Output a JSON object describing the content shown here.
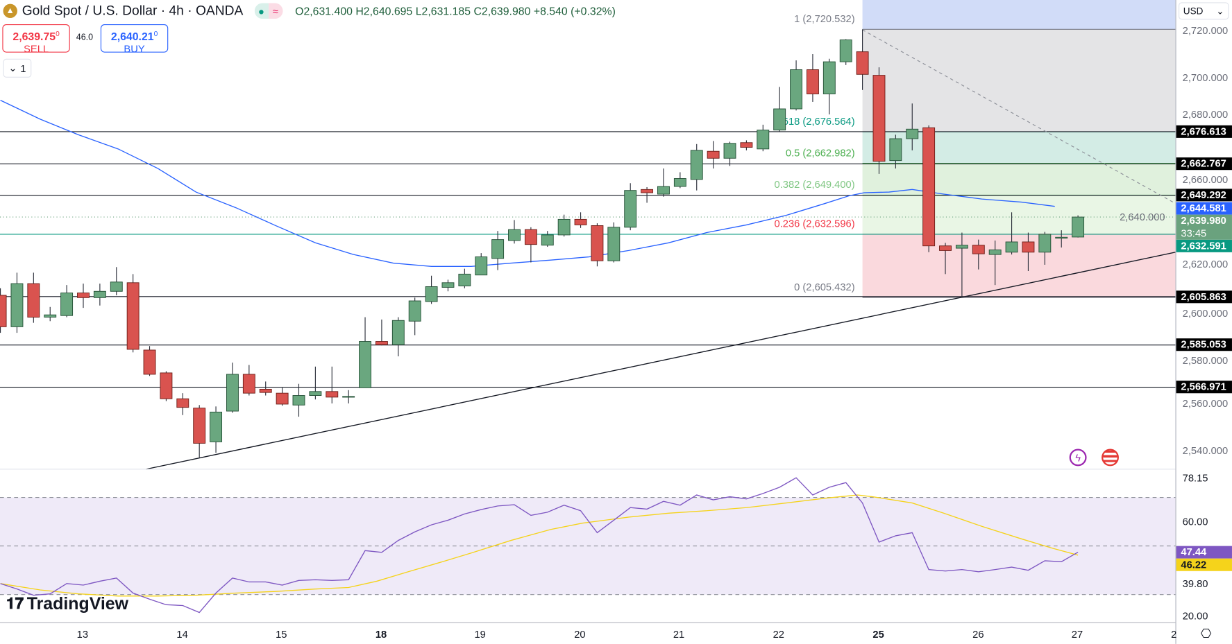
{
  "header": {
    "title": "Gold Spot / U.S. Dollar · 4h · OANDA",
    "open": "O2,631.400",
    "high": "H2,640.695",
    "low": "L2,631.185",
    "close": "C2,639.980",
    "change": "+8.540 (+0.32%)",
    "sell_price": "2,639.75",
    "sell_sup": "0",
    "sell_label": "SELL",
    "buy_price": "2,640.21",
    "buy_sup": "0",
    "buy_label": "BUY",
    "spread": "46.0",
    "collapse_label": "1",
    "logo_icon": "gold-bars-icon"
  },
  "axis": {
    "currency": "USD",
    "price_ticks": [
      "2,720.000",
      "2,700.000",
      "2,680.000",
      "2,660.000",
      "2,640.000",
      "2,620.000",
      "2,600.000",
      "2,580.000",
      "2,560.000",
      "2,540.000"
    ],
    "rsi_ticks": [
      "78.15",
      "60.00",
      "39.80",
      "20.00"
    ]
  },
  "time_axis": [
    "13",
    "14",
    "15",
    "18",
    "19",
    "20",
    "21",
    "22",
    "25",
    "26",
    "27",
    "2"
  ],
  "levels": [
    {
      "price": 2676.613,
      "label": "2,676.613",
      "color": "#000000"
    },
    {
      "price": 2662.767,
      "label": "2,662.767",
      "color": "#000000"
    },
    {
      "price": 2649.292,
      "label": "2,649.292",
      "color": "#000000"
    },
    {
      "price": 2605.863,
      "label": "2,605.863",
      "color": "#000000"
    },
    {
      "price": 2585.053,
      "label": "2,585.053",
      "color": "#000000"
    },
    {
      "price": 2566.971,
      "label": "2,566.971",
      "color": "#000000"
    },
    {
      "price": 2632.591,
      "label": "2,632.591",
      "color": "#089981"
    }
  ],
  "ma_badge": {
    "price": 2644.581,
    "label": "2,644.581",
    "color": "#2962ff"
  },
  "last_badge": {
    "price": 2639.98,
    "label": "2,639.980",
    "countdown": "33:45",
    "color": "#6aa27e"
  },
  "fib": {
    "labels": [
      {
        "ratio": 1,
        "price": 2720.532,
        "text": "1 (2,720.532)",
        "color": "#787b86"
      },
      {
        "ratio": 0.618,
        "price": 2676.564,
        "text": "0.618 (2,676.564)",
        "color": "#089981"
      },
      {
        "ratio": 0.5,
        "price": 2662.982,
        "text": "0.5 (2,662.982)",
        "color": "#4caf50"
      },
      {
        "ratio": 0.382,
        "price": 2649.4,
        "text": "0.382 (2,649.400)",
        "color": "#81c784"
      },
      {
        "ratio": 0.236,
        "price": 2632.596,
        "text": "0.236 (2,632.596)",
        "color": "#f23645"
      },
      {
        "ratio": 0,
        "price": 2605.432,
        "text": "0 (2,605.432)",
        "color": "#787b86"
      }
    ],
    "band_colors": [
      "#d1dcf8",
      "#e4e4e6",
      "#d3ece5",
      "#e0f1dd",
      "#e9f6e5",
      "#fad9dd"
    ]
  },
  "chart_data": {
    "type": "candlestick",
    "interval": "4h",
    "ylim": [
      2532,
      2726
    ],
    "candles": [
      [
        2606.4,
        2609.4,
        2590.3,
        2592.9
      ],
      [
        2592.9,
        2616.1,
        2590.3,
        2611.4
      ],
      [
        2611.4,
        2616.1,
        2594.6,
        2597.0
      ],
      [
        2597.0,
        2601.4,
        2595.3,
        2598.0
      ],
      [
        2597.7,
        2610.8,
        2597.0,
        2607.4
      ],
      [
        2607.4,
        2611.4,
        2601.0,
        2605.4
      ],
      [
        2605.4,
        2611.4,
        2602.0,
        2608.1
      ],
      [
        2608.1,
        2618.5,
        2606.4,
        2612.1
      ],
      [
        2611.8,
        2615.5,
        2581.9,
        2583.2
      ],
      [
        2582.9,
        2584.6,
        2571.8,
        2572.5
      ],
      [
        2573.1,
        2573.8,
        2561.0,
        2562.0
      ],
      [
        2562.0,
        2564.4,
        2555.0,
        2558.3
      ],
      [
        2558.0,
        2559.3,
        2536.5,
        2542.9
      ],
      [
        2543.5,
        2558.7,
        2538.8,
        2556.3
      ],
      [
        2556.7,
        2577.5,
        2556.0,
        2572.5
      ],
      [
        2572.5,
        2576.5,
        2563.4,
        2564.4
      ],
      [
        2566.1,
        2569.4,
        2563.4,
        2564.7
      ],
      [
        2564.4,
        2566.7,
        2559.0,
        2559.7
      ],
      [
        2559.3,
        2568.4,
        2554.3,
        2563.4
      ],
      [
        2563.4,
        2575.8,
        2561.7,
        2565.1
      ],
      [
        2565.1,
        2575.8,
        2560.0,
        2562.7
      ],
      [
        2562.7,
        2565.7,
        2560.0,
        2563.0
      ],
      [
        2566.7,
        2597.0,
        2566.7,
        2586.6
      ],
      [
        2586.6,
        2596.0,
        2584.9,
        2585.2
      ],
      [
        2585.2,
        2597.0,
        2580.2,
        2595.6
      ],
      [
        2595.3,
        2605.4,
        2589.3,
        2604.0
      ],
      [
        2603.7,
        2614.8,
        2602.7,
        2610.1
      ],
      [
        2609.8,
        2613.1,
        2608.1,
        2611.8
      ],
      [
        2610.4,
        2617.8,
        2609.4,
        2615.5
      ],
      [
        2615.1,
        2624.5,
        2615.1,
        2622.9
      ],
      [
        2622.2,
        2634.0,
        2617.2,
        2630.3
      ],
      [
        2629.9,
        2638.7,
        2628.6,
        2634.6
      ],
      [
        2634.6,
        2635.6,
        2620.5,
        2628.2
      ],
      [
        2627.9,
        2634.0,
        2627.2,
        2632.3
      ],
      [
        2632.3,
        2641.0,
        2631.6,
        2639.0
      ],
      [
        2639.0,
        2642.0,
        2635.3,
        2636.6
      ],
      [
        2636.3,
        2637.3,
        2618.8,
        2621.2
      ],
      [
        2621.2,
        2637.7,
        2620.5,
        2635.6
      ],
      [
        2635.6,
        2654.5,
        2634.3,
        2651.4
      ],
      [
        2651.8,
        2652.8,
        2646.1,
        2650.4
      ],
      [
        2649.8,
        2660.8,
        2648.7,
        2653.1
      ],
      [
        2653.1,
        2659.2,
        2652.4,
        2656.5
      ],
      [
        2656.1,
        2671.3,
        2651.4,
        2668.6
      ],
      [
        2668.2,
        2672.6,
        2660.8,
        2665.2
      ],
      [
        2665.2,
        2672.3,
        2661.9,
        2671.6
      ],
      [
        2671.9,
        2672.9,
        2668.6,
        2669.9
      ],
      [
        2669.2,
        2679.6,
        2668.2,
        2677.3
      ],
      [
        2677.3,
        2695.8,
        2676.6,
        2686.4
      ],
      [
        2686.4,
        2707.2,
        2685.7,
        2703.2
      ],
      [
        2703.2,
        2709.9,
        2689.4,
        2692.8
      ],
      [
        2692.8,
        2707.9,
        2684.0,
        2706.6
      ],
      [
        2706.6,
        2716.3,
        2705.2,
        2716.0
      ],
      [
        2710.9,
        2720.5,
        2694.5,
        2701.2
      ],
      [
        2700.8,
        2704.2,
        2658.5,
        2663.9
      ],
      [
        2664.2,
        2675.3,
        2660.8,
        2673.6
      ],
      [
        2673.6,
        2688.7,
        2668.6,
        2677.7
      ],
      [
        2678.3,
        2679.3,
        2624.9,
        2627.6
      ],
      [
        2627.6,
        2628.9,
        2615.5,
        2625.6
      ],
      [
        2626.6,
        2633.3,
        2605.4,
        2627.9
      ],
      [
        2627.9,
        2630.3,
        2617.5,
        2624.2
      ],
      [
        2623.9,
        2629.9,
        2610.8,
        2625.9
      ],
      [
        2624.9,
        2642.0,
        2623.9,
        2629.3
      ],
      [
        2629.3,
        2633.3,
        2616.8,
        2624.9
      ],
      [
        2624.9,
        2633.6,
        2619.5,
        2632.6
      ],
      [
        2630.9,
        2634.3,
        2626.9,
        2631.3
      ],
      [
        2631.4,
        2640.695,
        2631.185,
        2639.98
      ]
    ],
    "ma": [
      [
        0,
        2690.1
      ],
      [
        2.4,
        2682.0
      ],
      [
        4.7,
        2675.3
      ],
      [
        7.1,
        2669.2
      ],
      [
        9.5,
        2660.8
      ],
      [
        11.8,
        2650.7
      ],
      [
        14.2,
        2644.0
      ],
      [
        16.6,
        2636.3
      ],
      [
        19,
        2628.9
      ],
      [
        21.3,
        2623.9
      ],
      [
        23.7,
        2620.2
      ],
      [
        26,
        2618.8
      ],
      [
        28.4,
        2618.8
      ],
      [
        30.8,
        2620.2
      ],
      [
        33.2,
        2621.5
      ],
      [
        35.5,
        2622.9
      ],
      [
        37.9,
        2625.6
      ],
      [
        40.3,
        2628.9
      ],
      [
        42.6,
        2633.3
      ],
      [
        45,
        2636.6
      ],
      [
        47.4,
        2640.7
      ],
      [
        49.7,
        2645.7
      ],
      [
        51.2,
        2649.1
      ],
      [
        52.1,
        2650.4
      ],
      [
        53.6,
        2650.7
      ],
      [
        55,
        2651.8
      ],
      [
        56.9,
        2649.8
      ],
      [
        59.2,
        2647.7
      ],
      [
        61.6,
        2646.4
      ],
      [
        63.6,
        2644.581
      ]
    ],
    "trendline": [
      [
        8.8,
        2531.8
      ],
      [
        70.9,
        2624.9
      ]
    ],
    "dashed_line": [
      [
        52,
        2720.3
      ],
      [
        70.9,
        2645.7
      ]
    ],
    "rsi": {
      "ylim": [
        15,
        82
      ],
      "bands": [
        30,
        50,
        70
      ],
      "last": "47.44",
      "signal_last": "46.22",
      "line_color": "#7e57c2",
      "signal_color": "#f5d31b",
      "values": [
        34.5,
        32.3,
        29.7,
        30.3,
        34.5,
        33.9,
        35.5,
        36.8,
        30.6,
        28.1,
        25.8,
        25.5,
        22.6,
        30.6,
        36.8,
        35.2,
        35.2,
        33.9,
        35.8,
        36.1,
        35.8,
        36.1,
        48.1,
        47.4,
        52.3,
        55.8,
        58.7,
        60.6,
        63.2,
        65.0,
        66.5,
        67.0,
        62.6,
        63.9,
        66.8,
        64.5,
        55.5,
        60.6,
        65.8,
        65.2,
        68.4,
        66.8,
        71.0,
        69.0,
        70.3,
        69.4,
        71.6,
        74.2,
        78.1,
        71.0,
        74.2,
        76.1,
        67.7,
        51.6,
        54.2,
        55.5,
        40.3,
        39.7,
        40.3,
        39.4,
        40.3,
        41.3,
        40.0,
        43.9,
        43.5,
        47.44
      ],
      "signal": [
        [
          0,
          34.5
        ],
        [
          2.4,
          31.9
        ],
        [
          4.7,
          30.3
        ],
        [
          7.1,
          29.4
        ],
        [
          9.5,
          29.4
        ],
        [
          11.8,
          29.7
        ],
        [
          14.2,
          30.6
        ],
        [
          16.6,
          31.3
        ],
        [
          19,
          32.3
        ],
        [
          21,
          32.9
        ],
        [
          22.7,
          35.5
        ],
        [
          24.6,
          39.4
        ],
        [
          26.5,
          43.2
        ],
        [
          28.4,
          47.1
        ],
        [
          30.8,
          52.3
        ],
        [
          33.2,
          56.8
        ],
        [
          35.1,
          59.4
        ],
        [
          37.9,
          61.9
        ],
        [
          40.3,
          63.5
        ],
        [
          42.6,
          64.5
        ],
        [
          45,
          65.8
        ],
        [
          47.4,
          67.7
        ],
        [
          49.8,
          69.7
        ],
        [
          51.7,
          71.0
        ],
        [
          52.6,
          70.3
        ],
        [
          55,
          67.7
        ],
        [
          56.9,
          63.5
        ],
        [
          59.2,
          58.1
        ],
        [
          61.6,
          52.9
        ],
        [
          63.5,
          49.0
        ],
        [
          65,
          46.22
        ]
      ]
    }
  },
  "colors": {
    "up": "#6aa77f",
    "down": "#d9534f",
    "ma": "#2962ff"
  },
  "branding": {
    "name": "TradingView"
  },
  "icons": {
    "lightning": "lightning-icon",
    "flag": "us-flag-icon",
    "settings": "settings-icon"
  }
}
